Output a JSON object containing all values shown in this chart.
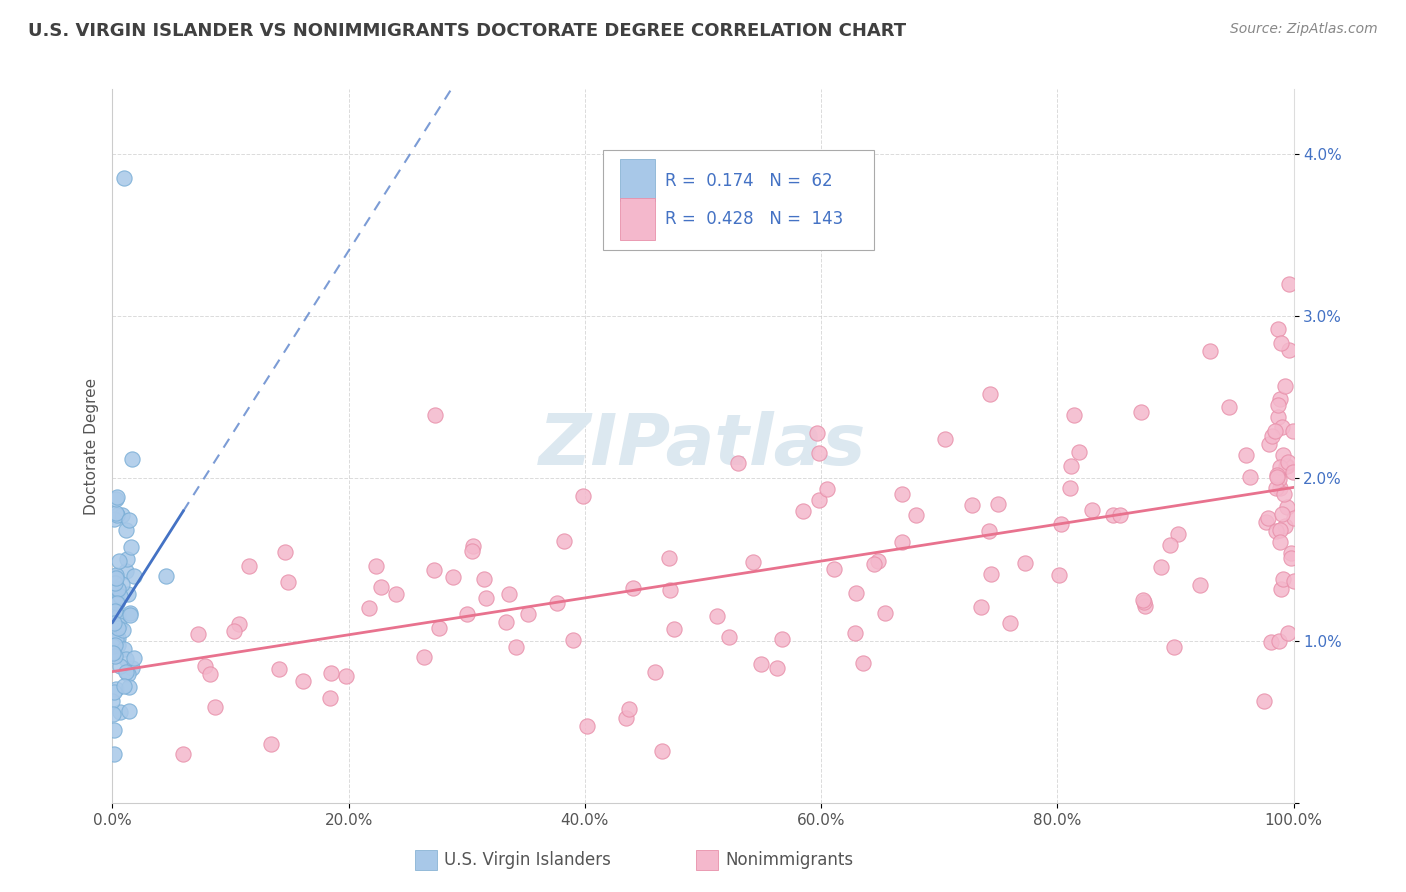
{
  "title": "U.S. VIRGIN ISLANDER VS NONIMMIGRANTS DOCTORATE DEGREE CORRELATION CHART",
  "source": "Source: ZipAtlas.com",
  "ylabel": "Doctorate Degree",
  "xlim": [
    0,
    100
  ],
  "ylim": [
    0,
    4.4
  ],
  "ytick_values": [
    0,
    1,
    2,
    3,
    4
  ],
  "ytick_labels_right": [
    "",
    "1.0%",
    "2.0%",
    "3.0%",
    "4.0%"
  ],
  "xtick_values": [
    0,
    20,
    40,
    60,
    80,
    100
  ],
  "xtick_labels": [
    "0.0%",
    "20.0%",
    "40.0%",
    "60.0%",
    "80.0%",
    "100.0%"
  ],
  "legend_labels": [
    "U.S. Virgin Islanders",
    "Nonimmigrants"
  ],
  "blue_color": "#a8c8e8",
  "blue_edge_color": "#7aaed6",
  "pink_color": "#f4b8cc",
  "pink_edge_color": "#e890aa",
  "blue_line_color": "#4472c4",
  "pink_line_color": "#e8728e",
  "blue_R": 0.174,
  "blue_N": 62,
  "pink_R": 0.428,
  "pink_N": 143,
  "background_color": "#ffffff",
  "grid_color": "#cccccc",
  "title_color": "#404040",
  "source_color": "#888888",
  "legend_R_color": "#4472c4",
  "watermark": "ZIPatlas",
  "watermark_color": "#dce8f0"
}
